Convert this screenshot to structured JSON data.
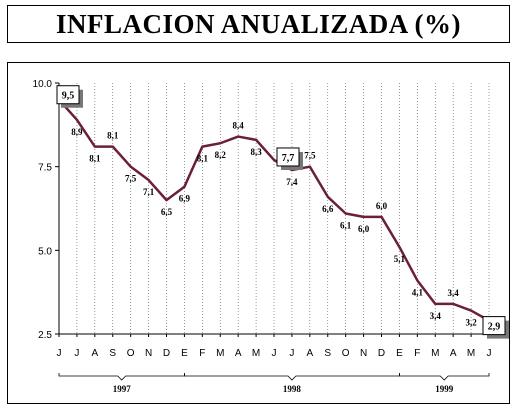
{
  "title": "INFLACION ANUALIZADA (%)",
  "chart_data": {
    "type": "line",
    "line_color": "#6b1f3a",
    "categories": [
      "J",
      "J",
      "A",
      "S",
      "O",
      "N",
      "D",
      "E",
      "F",
      "M",
      "A",
      "M",
      "J",
      "J",
      "A",
      "S",
      "O",
      "N",
      "D",
      "E",
      "F",
      "M",
      "A",
      "M",
      "J"
    ],
    "values": [
      9.5,
      8.9,
      8.1,
      8.1,
      7.5,
      7.1,
      6.5,
      6.9,
      8.1,
      8.2,
      8.4,
      8.3,
      7.7,
      7.4,
      7.5,
      6.6,
      6.1,
      6.0,
      6.0,
      5.1,
      4.1,
      3.4,
      3.4,
      3.2,
      2.9
    ],
    "data_labels": [
      "9,5",
      "8,9",
      "8,1",
      "8,1",
      "7,5",
      "7,1",
      "6,5",
      "6,9",
      "8,1",
      "8,2",
      "8,4",
      "8,3",
      "7,7",
      "7,4",
      "7,5",
      "6,6",
      "6,1",
      "6,0",
      "6,0",
      "5,1",
      "4,1",
      "3,4",
      "3,4",
      "3,2",
      "2,9"
    ],
    "boxed_labels": [
      0,
      12,
      24
    ],
    "y_ticks": [
      "10.0",
      "7.5",
      "5.0",
      "2.5"
    ],
    "ylim": [
      2.5,
      10.0
    ],
    "grid": "vertical dotted",
    "year_groups": [
      {
        "label": "1997",
        "from": 0,
        "to": 7
      },
      {
        "label": "1998",
        "from": 7,
        "to": 19
      },
      {
        "label": "1999",
        "from": 19,
        "to": 24
      }
    ]
  }
}
